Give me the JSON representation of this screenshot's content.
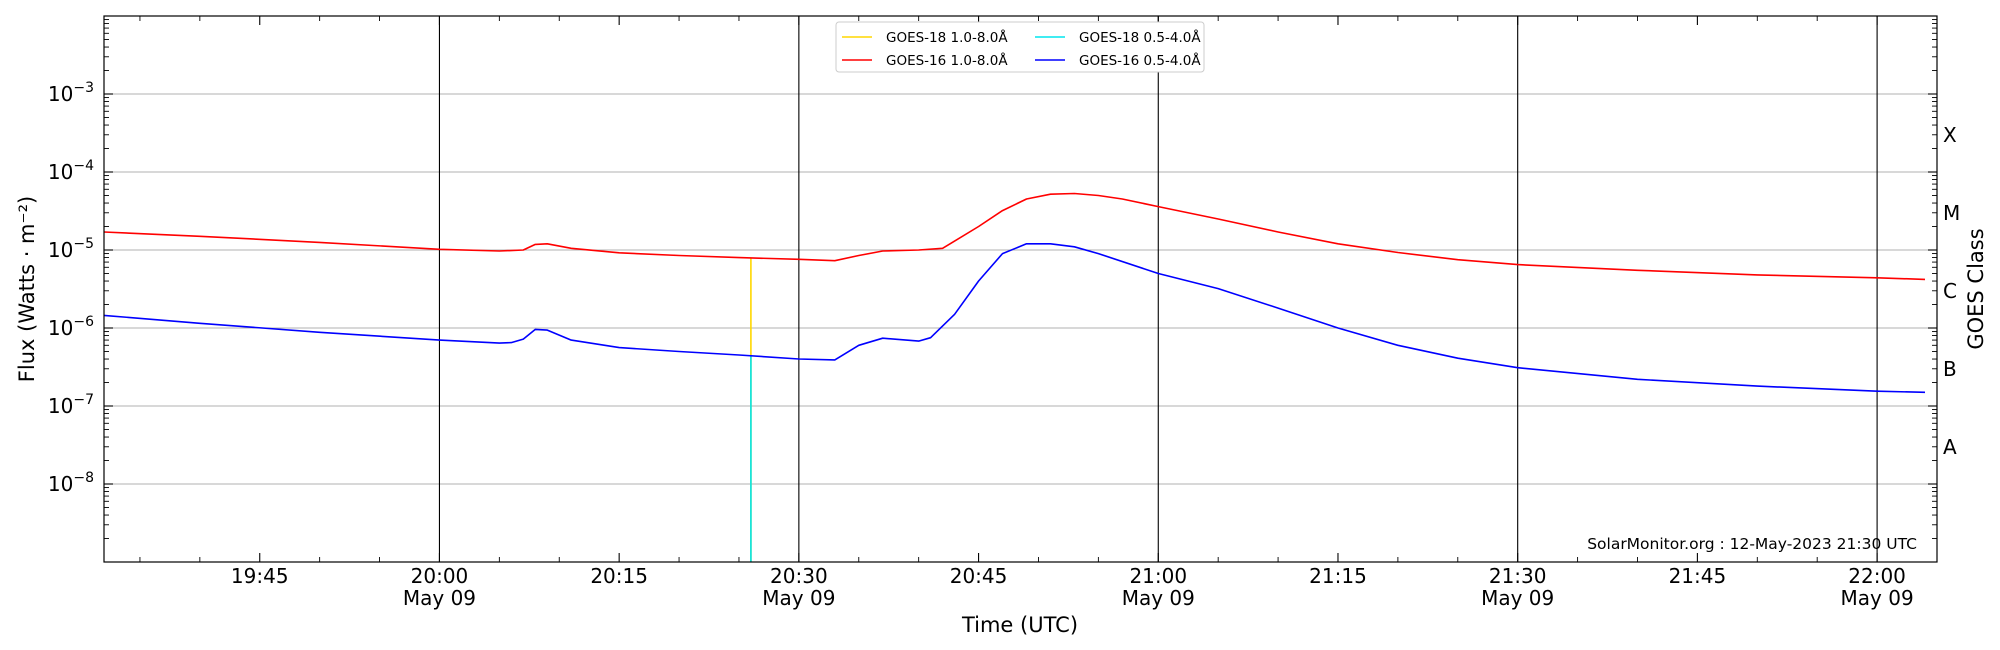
{
  "chart_data": {
    "type": "line",
    "xlabel": "Time (UTC)",
    "ylabel": "Flux (Watts · m⁻²)",
    "y2label": "GOES Class",
    "yscale": "log",
    "xlim": [
      "19:32",
      "22:05"
    ],
    "ylim": [
      1e-09,
      0.01
    ],
    "grid": "horizontal",
    "legend": "top-center",
    "x_ticks": [
      {
        "time": "19:45",
        "label": "19:45",
        "date": ""
      },
      {
        "time": "20:00",
        "label": "20:00",
        "date": "May 09"
      },
      {
        "time": "20:15",
        "label": "20:15",
        "date": ""
      },
      {
        "time": "20:30",
        "label": "20:30",
        "date": "May 09"
      },
      {
        "time": "20:45",
        "label": "20:45",
        "date": ""
      },
      {
        "time": "21:00",
        "label": "21:00",
        "date": "May 09"
      },
      {
        "time": "21:15",
        "label": "21:15",
        "date": ""
      },
      {
        "time": "21:30",
        "label": "21:30",
        "date": "May 09"
      },
      {
        "time": "21:45",
        "label": "21:45",
        "date": ""
      },
      {
        "time": "22:00",
        "label": "22:00",
        "date": "May 09"
      }
    ],
    "y_ticks": [
      {
        "value": 1e-08,
        "base": "10",
        "exp": "−8"
      },
      {
        "value": 1e-07,
        "base": "10",
        "exp": "−7"
      },
      {
        "value": 1e-06,
        "base": "10",
        "exp": "−6"
      },
      {
        "value": 1e-05,
        "base": "10",
        "exp": "−5"
      },
      {
        "value": 0.0001,
        "base": "10",
        "exp": "−4"
      },
      {
        "value": 0.001,
        "base": "10",
        "exp": "−3"
      }
    ],
    "goes_classes": [
      {
        "label": "A",
        "value": 3e-08
      },
      {
        "label": "B",
        "value": 3e-07
      },
      {
        "label": "C",
        "value": 3e-06
      },
      {
        "label": "M",
        "value": 3e-05
      },
      {
        "label": "X",
        "value": 0.0003
      }
    ],
    "vlines": [
      "20:00",
      "20:30",
      "21:00",
      "21:30",
      "22:00"
    ],
    "series": [
      {
        "name": "GOES-18 1.0-8.0Å",
        "color": "#ffd700",
        "points": [
          [
            "20:26",
            1e-09
          ],
          [
            "20:26",
            8e-06
          ]
        ]
      },
      {
        "name": "GOES-18 0.5-4.0Å",
        "color": "#00e5ee",
        "points": [
          [
            "20:26",
            1e-09
          ],
          [
            "20:26",
            4.5e-07
          ]
        ]
      },
      {
        "name": "GOES-16 1.0-8.0Å",
        "color": "#ff0000",
        "points": [
          [
            "19:32",
            1.7e-05
          ],
          [
            "19:40",
            1.5e-05
          ],
          [
            "19:50",
            1.25e-05
          ],
          [
            "20:00",
            1.02e-05
          ],
          [
            "20:05",
            9.7e-06
          ],
          [
            "20:07",
            1e-05
          ],
          [
            "20:08",
            1.18e-05
          ],
          [
            "20:09",
            1.2e-05
          ],
          [
            "20:11",
            1.05e-05
          ],
          [
            "20:15",
            9.2e-06
          ],
          [
            "20:20",
            8.5e-06
          ],
          [
            "20:25",
            8e-06
          ],
          [
            "20:30",
            7.6e-06
          ],
          [
            "20:33",
            7.3e-06
          ],
          [
            "20:35",
            8.5e-06
          ],
          [
            "20:37",
            9.7e-06
          ],
          [
            "20:40",
            1e-05
          ],
          [
            "20:42",
            1.05e-05
          ],
          [
            "20:43",
            1.3e-05
          ],
          [
            "20:45",
            2e-05
          ],
          [
            "20:47",
            3.2e-05
          ],
          [
            "20:49",
            4.5e-05
          ],
          [
            "20:51",
            5.2e-05
          ],
          [
            "20:53",
            5.3e-05
          ],
          [
            "20:55",
            5e-05
          ],
          [
            "20:57",
            4.5e-05
          ],
          [
            "21:00",
            3.6e-05
          ],
          [
            "21:05",
            2.5e-05
          ],
          [
            "21:10",
            1.7e-05
          ],
          [
            "21:15",
            1.2e-05
          ],
          [
            "21:20",
            9.3e-06
          ],
          [
            "21:25",
            7.5e-06
          ],
          [
            "21:30",
            6.5e-06
          ],
          [
            "21:40",
            5.5e-06
          ],
          [
            "21:50",
            4.8e-06
          ],
          [
            "22:00",
            4.4e-06
          ],
          [
            "22:04",
            4.2e-06
          ]
        ]
      },
      {
        "name": "GOES-16 0.5-4.0Å",
        "color": "#0000ff",
        "points": [
          [
            "19:32",
            1.45e-06
          ],
          [
            "19:40",
            1.15e-06
          ],
          [
            "19:50",
            8.8e-07
          ],
          [
            "20:00",
            7e-07
          ],
          [
            "20:05",
            6.4e-07
          ],
          [
            "20:06",
            6.5e-07
          ],
          [
            "20:07",
            7.2e-07
          ],
          [
            "20:08",
            9.6e-07
          ],
          [
            "20:09",
            9.4e-07
          ],
          [
            "20:11",
            7e-07
          ],
          [
            "20:15",
            5.6e-07
          ],
          [
            "20:20",
            5e-07
          ],
          [
            "20:25",
            4.5e-07
          ],
          [
            "20:30",
            4e-07
          ],
          [
            "20:33",
            3.9e-07
          ],
          [
            "20:35",
            6e-07
          ],
          [
            "20:37",
            7.4e-07
          ],
          [
            "20:40",
            6.8e-07
          ],
          [
            "20:41",
            7.5e-07
          ],
          [
            "20:43",
            1.5e-06
          ],
          [
            "20:45",
            4e-06
          ],
          [
            "20:47",
            9e-06
          ],
          [
            "20:49",
            1.2e-05
          ],
          [
            "20:51",
            1.2e-05
          ],
          [
            "20:53",
            1.1e-05
          ],
          [
            "20:55",
            9e-06
          ],
          [
            "21:00",
            5e-06
          ],
          [
            "21:05",
            3.2e-06
          ],
          [
            "21:10",
            1.8e-06
          ],
          [
            "21:15",
            1e-06
          ],
          [
            "21:20",
            6e-07
          ],
          [
            "21:25",
            4.1e-07
          ],
          [
            "21:30",
            3.1e-07
          ],
          [
            "21:40",
            2.2e-07
          ],
          [
            "21:50",
            1.8e-07
          ],
          [
            "22:00",
            1.55e-07
          ],
          [
            "22:04",
            1.5e-07
          ]
        ]
      }
    ],
    "legend_order": [
      0,
      2,
      1,
      3
    ],
    "footer": "SolarMonitor.org : 12-May-2023 21:30 UTC"
  }
}
